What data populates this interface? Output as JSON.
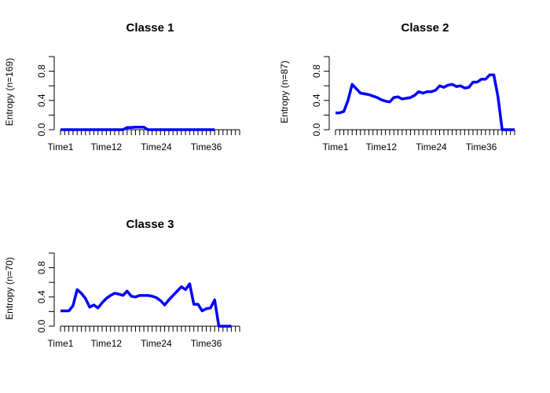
{
  "chart_data": [
    {
      "type": "line",
      "title": "Classe 1",
      "ylabel": "Entropy (n=169)",
      "color": "#0000FF",
      "ylim": [
        0,
        1
      ],
      "yticks": [
        0.0,
        0.4,
        0.8
      ],
      "yticklabels": [
        "0.0",
        "0.4",
        "0.8"
      ],
      "xticklabels": [
        "Time1",
        "Time12",
        "Time24",
        "Time36"
      ],
      "xticklabel_positions": [
        1,
        12,
        24,
        36
      ],
      "x_count": 44,
      "x": [
        1,
        2,
        3,
        4,
        5,
        6,
        7,
        8,
        9,
        10,
        11,
        12,
        13,
        14,
        15,
        16,
        17,
        18,
        19,
        20,
        21,
        22,
        23,
        24,
        25,
        26,
        27,
        28,
        29,
        30,
        31,
        32,
        33,
        34,
        35,
        36,
        37,
        38
      ],
      "values": [
        0,
        0,
        0,
        0,
        0,
        0,
        0,
        0,
        0,
        0,
        0,
        0,
        0,
        0,
        0,
        0,
        0.03,
        0.03,
        0.035,
        0.035,
        0.035,
        0,
        0,
        0,
        0,
        0,
        0,
        0,
        0,
        0,
        0,
        0,
        0,
        0,
        0,
        0,
        0,
        0
      ]
    },
    {
      "type": "line",
      "title": "Classe 2",
      "ylabel": "Entropy (n=87)",
      "color": "#0000FF",
      "ylim": [
        0,
        1
      ],
      "yticks": [
        0.0,
        0.4,
        0.8
      ],
      "yticklabels": [
        "0.0",
        "0.4",
        "0.8"
      ],
      "xticklabels": [
        "Time1",
        "Time12",
        "Time24",
        "Time36"
      ],
      "xticklabel_positions": [
        1,
        12,
        24,
        36
      ],
      "x_count": 44,
      "x": [
        1,
        2,
        3,
        4,
        5,
        6,
        7,
        8,
        9,
        10,
        11,
        12,
        13,
        14,
        15,
        16,
        17,
        18,
        19,
        20,
        21,
        22,
        23,
        24,
        25,
        26,
        27,
        28,
        29,
        30,
        31,
        32,
        33,
        34,
        35,
        36,
        37,
        38,
        39,
        40,
        41,
        42,
        43,
        44
      ],
      "values": [
        0.23,
        0.23,
        0.25,
        0.4,
        0.62,
        0.56,
        0.5,
        0.49,
        0.48,
        0.46,
        0.44,
        0.41,
        0.39,
        0.38,
        0.44,
        0.45,
        0.42,
        0.43,
        0.44,
        0.47,
        0.52,
        0.5,
        0.52,
        0.52,
        0.54,
        0.6,
        0.58,
        0.61,
        0.62,
        0.59,
        0.6,
        0.57,
        0.58,
        0.65,
        0.65,
        0.69,
        0.69,
        0.75,
        0.75,
        0.45,
        0.0,
        0.0,
        0.0,
        0.0
      ]
    },
    {
      "type": "line",
      "title": "Classe 3",
      "ylabel": "Entropy (n=70)",
      "color": "#0000FF",
      "ylim": [
        0,
        1
      ],
      "yticks": [
        0.0,
        0.4,
        0.8
      ],
      "yticklabels": [
        "0.0",
        "0.4",
        "0.8"
      ],
      "xticklabels": [
        "Time1",
        "Time12",
        "Time24",
        "Time36"
      ],
      "xticklabel_positions": [
        1,
        12,
        24,
        36
      ],
      "x_count": 44,
      "x": [
        1,
        2,
        3,
        4,
        5,
        6,
        7,
        8,
        9,
        10,
        11,
        12,
        13,
        14,
        15,
        16,
        17,
        18,
        19,
        20,
        21,
        22,
        23,
        24,
        25,
        26,
        27,
        28,
        29,
        30,
        31,
        32,
        33,
        34,
        35,
        36,
        37,
        38,
        39,
        40,
        41,
        42
      ],
      "values": [
        0.21,
        0.21,
        0.21,
        0.28,
        0.5,
        0.45,
        0.38,
        0.26,
        0.29,
        0.25,
        0.32,
        0.38,
        0.42,
        0.45,
        0.44,
        0.42,
        0.48,
        0.41,
        0.4,
        0.42,
        0.42,
        0.42,
        0.41,
        0.39,
        0.35,
        0.29,
        0.36,
        0.42,
        0.48,
        0.54,
        0.5,
        0.58,
        0.3,
        0.3,
        0.21,
        0.24,
        0.25,
        0.36,
        0.0,
        0.0,
        0.0,
        0.0
      ]
    }
  ]
}
